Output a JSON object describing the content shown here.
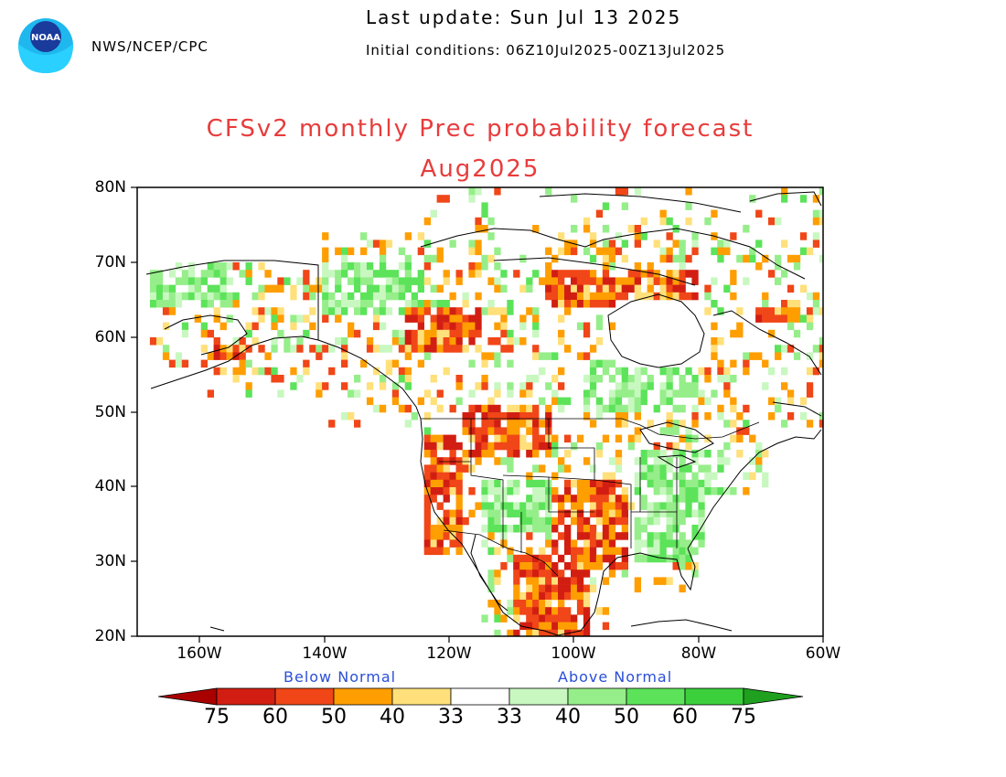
{
  "header": {
    "agency": "NWS/NCEP/CPC",
    "last_update": "Last update: Sun Jul 13 2025",
    "initial_conditions": "Initial conditions: 06Z10Jul2025-00Z13Jul2025",
    "logo_text": "NOAA"
  },
  "title": {
    "line1": "CFSv2 monthly Prec probability forecast",
    "line2": "Aug2025"
  },
  "map": {
    "lat_labels": [
      "80N",
      "70N",
      "60N",
      "50N",
      "40N",
      "30N",
      "20N"
    ],
    "lon_labels": [
      "160W",
      "140W",
      "120W",
      "100W",
      "80W",
      "60W"
    ],
    "lat_range": [
      20,
      80
    ],
    "lon_range": [
      -170,
      -60
    ]
  },
  "legend": {
    "below_label": "Below Normal",
    "above_label": "Above Normal",
    "tick_labels": [
      "75",
      "60",
      "50",
      "40",
      "33",
      "33",
      "40",
      "50",
      "60",
      "75"
    ],
    "colors": {
      "below": [
        "#a90000",
        "#d21e12",
        "#f04618",
        "#ff9e00",
        "#ffe07a"
      ],
      "neutral": "#ffffff",
      "above": [
        "#c8f8c0",
        "#96ee8a",
        "#5ce35a",
        "#3ccf3c",
        "#1fa01f"
      ]
    }
  }
}
